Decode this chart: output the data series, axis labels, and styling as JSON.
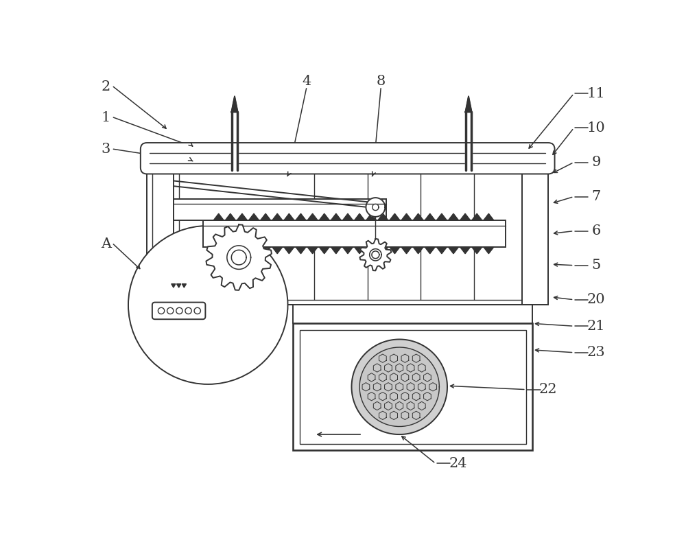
{
  "bg_color": "#ffffff",
  "lc": "#333333",
  "lw": 1.4,
  "lw2": 1.0,
  "figsize": [
    10.0,
    7.84
  ],
  "label_fs": 15
}
